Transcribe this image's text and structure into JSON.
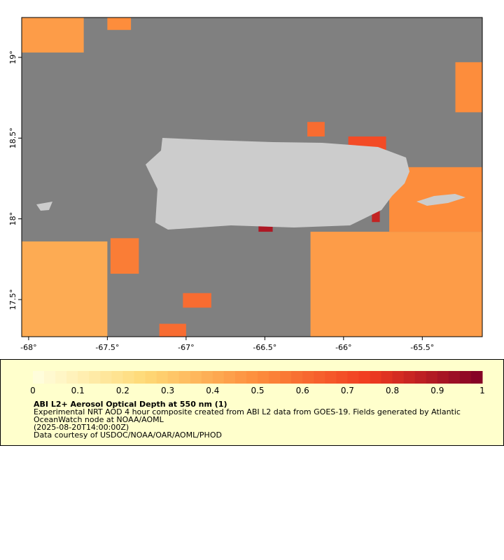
{
  "map": {
    "xlim": [
      -68.044,
      -65.119
    ],
    "ylim": [
      17.27,
      19.247
    ],
    "xticks": [
      {
        "value": -68,
        "label": "-68°"
      },
      {
        "value": -67.5,
        "label": "-67.5°"
      },
      {
        "value": -67,
        "label": "-67°"
      },
      {
        "value": -66.5,
        "label": "-66.5°"
      },
      {
        "value": -66,
        "label": "-66°"
      },
      {
        "value": -65.5,
        "label": "-65.5°"
      }
    ],
    "yticks": [
      {
        "value": 17.5,
        "label": "17.5°"
      },
      {
        "value": 18,
        "label": "18°"
      },
      {
        "value": 18.5,
        "label": "18.5°"
      },
      {
        "value": 19,
        "label": "19°"
      }
    ],
    "ocean_color": "#808080",
    "land_color": "#cccccc",
    "regions": [
      {
        "lon": [
          -66.21,
          -65.119
        ],
        "lat": [
          17.27,
          17.92
        ],
        "aod": 0.45
      },
      {
        "lon": [
          -65.71,
          -65.119
        ],
        "lat": [
          17.92,
          18.32
        ],
        "aod": 0.5
      },
      {
        "lon": [
          -68.044,
          -67.5
        ],
        "lat": [
          17.27,
          17.86
        ],
        "aod": 0.4
      },
      {
        "lon": [
          -68.044,
          -67.65
        ],
        "lat": [
          19.03,
          19.247
        ],
        "aod": 0.45
      },
      {
        "lon": [
          -67.5,
          -67.35
        ],
        "lat": [
          19.17,
          19.247
        ],
        "aod": 0.5
      },
      {
        "lon": [
          -66.23,
          -66.12
        ],
        "lat": [
          18.51,
          18.6
        ],
        "aod": 0.6
      },
      {
        "lon": [
          -65.97,
          -65.73
        ],
        "lat": [
          18.42,
          18.51
        ],
        "aod": 0.7
      },
      {
        "lon": [
          -67.48,
          -67.3
        ],
        "lat": [
          17.66,
          17.88
        ],
        "aod": 0.55
      },
      {
        "lon": [
          -67.17,
          -67.0
        ],
        "lat": [
          17.27,
          17.35
        ],
        "aod": 0.6
      },
      {
        "lon": [
          -67.02,
          -66.84
        ],
        "lat": [
          17.45,
          17.54
        ],
        "aod": 0.6
      },
      {
        "lon": [
          -65.82,
          -65.77
        ],
        "lat": [
          17.98,
          18.06
        ],
        "aod": 0.85
      },
      {
        "lon": [
          -66.54,
          -66.45
        ],
        "lat": [
          17.92,
          17.97
        ],
        "aod": 0.9
      },
      {
        "lon": [
          -65.29,
          -65.119
        ],
        "lat": [
          18.66,
          18.97
        ],
        "aod": 0.5
      }
    ]
  },
  "colorbar": {
    "lim": [
      0,
      1
    ],
    "ticks": [
      0,
      0.1,
      0.2,
      0.3,
      0.4,
      0.5,
      0.6,
      0.7,
      0.8,
      0.9,
      1
    ],
    "colors": [
      "#ffffe0",
      "#fed976",
      "#fd8d3c",
      "#f03b20",
      "#800026"
    ]
  },
  "caption": {
    "title": "ABI L2+ Aerosol Optical Depth at 550 nm (1)",
    "lines": [
      "Experimental NRT AOD 4 hour composite created from ABI L2 data from GOES-19. Fields generated by Atlantic",
      "OceanWatch node at NOAA/AOML",
      "(2025-08-20T14:00:00Z)",
      "Data courtesy of USDOC/NOAA/OAR/AOML/PHOD"
    ]
  }
}
